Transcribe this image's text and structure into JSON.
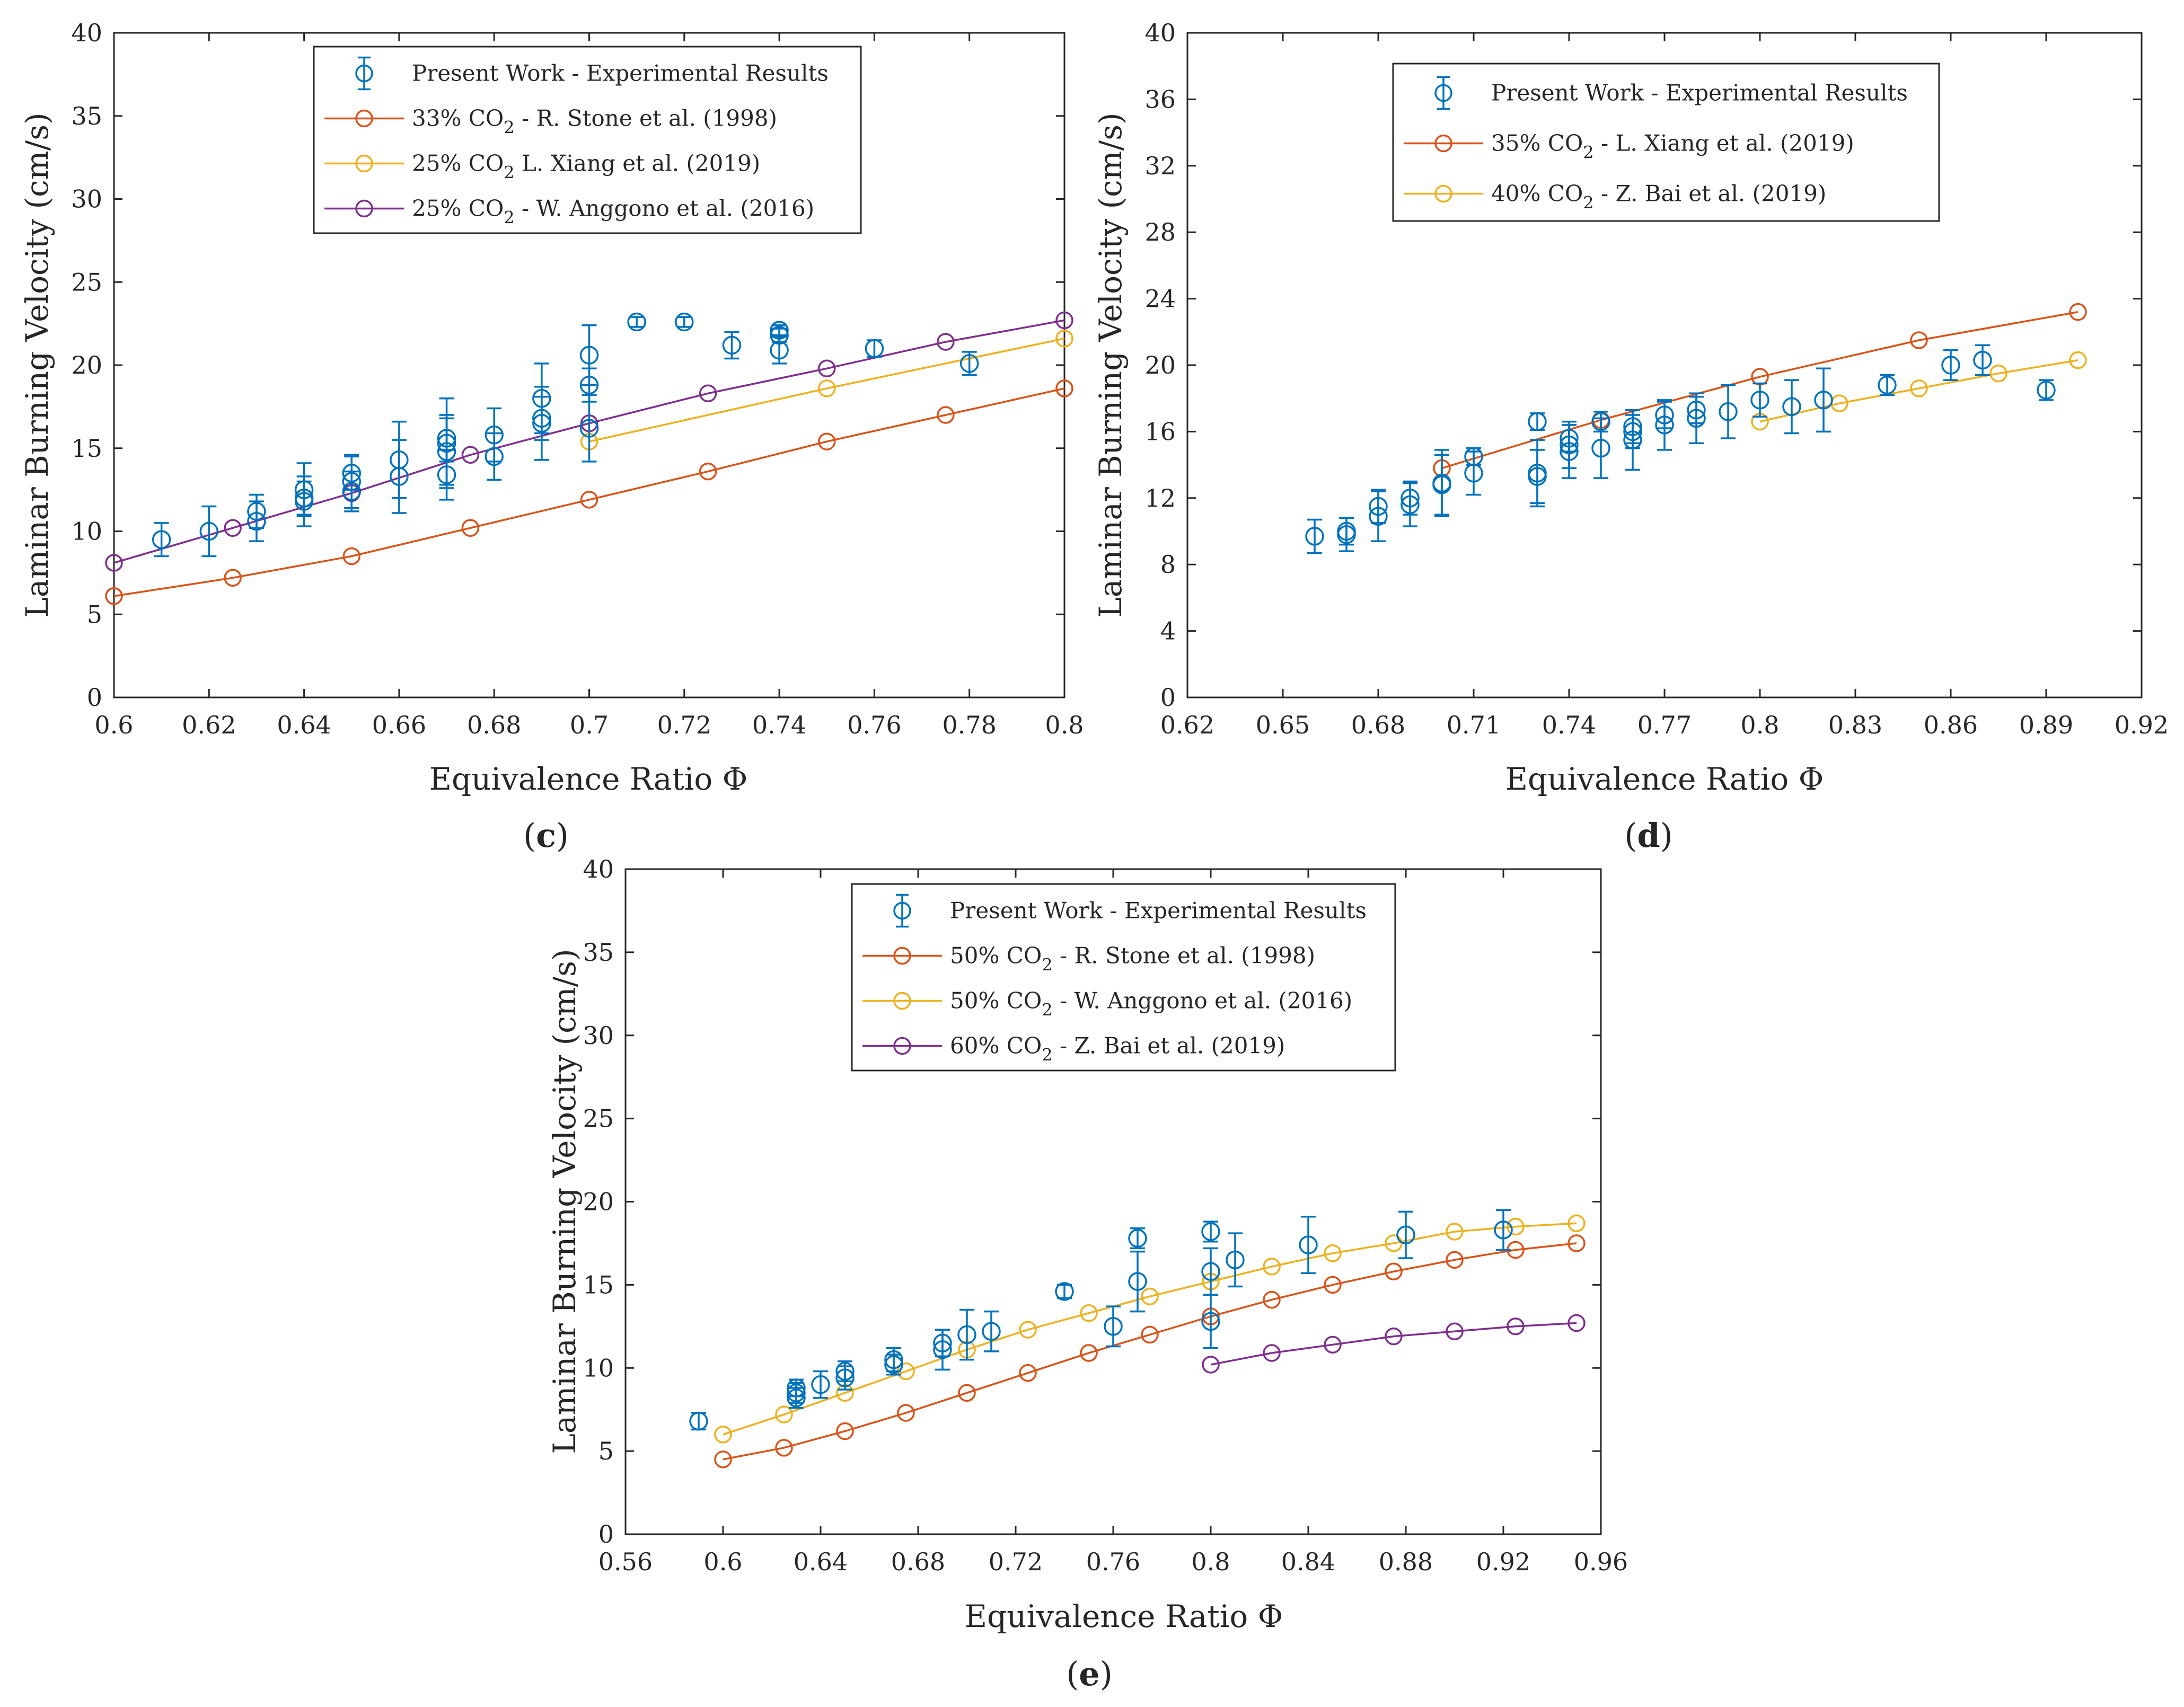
{
  "chart_data": [
    {
      "panel": "(c)",
      "panel_open": "(",
      "panel_letter": "c",
      "panel_close": ")",
      "type": "scatter",
      "xlabel": "Equivalence Ratio Φ",
      "ylabel": "Laminar Burning Velocity (cm/s)",
      "xlim": [
        0.6,
        0.8
      ],
      "ylim": [
        0,
        40
      ],
      "xticks": [
        0.6,
        0.62,
        0.64,
        0.66,
        0.68,
        0.7,
        0.72,
        0.74,
        0.76,
        0.78,
        0.8
      ],
      "xtick_labels": [
        "0.6",
        "0.62",
        "0.64",
        "0.66",
        "0.68",
        "0.7",
        "0.72",
        "0.74",
        "0.76",
        "0.78",
        "0.8"
      ],
      "yticks": [
        0,
        5,
        10,
        15,
        20,
        25,
        30,
        35,
        40
      ],
      "ytick_labels": [
        "0",
        "5",
        "10",
        "15",
        "20",
        "25",
        "30",
        "35",
        "40"
      ],
      "legend_position": "top-center",
      "experimental": {
        "name": "Present Work - Experimental Results",
        "color": "#0072BD",
        "points": [
          {
            "x": 0.61,
            "y": 9.5,
            "e": 1.0
          },
          {
            "x": 0.62,
            "y": 10.0,
            "e": 1.5
          },
          {
            "x": 0.63,
            "y": 10.6,
            "e": 1.2
          },
          {
            "x": 0.63,
            "y": 11.2,
            "e": 1.0
          },
          {
            "x": 0.64,
            "y": 11.8,
            "e": 1.5
          },
          {
            "x": 0.64,
            "y": 12.5,
            "e": 1.6
          },
          {
            "x": 0.64,
            "y": 12.0,
            "e": 1.0
          },
          {
            "x": 0.65,
            "y": 12.4,
            "e": 1.2
          },
          {
            "x": 0.65,
            "y": 13.0,
            "e": 1.6
          },
          {
            "x": 0.65,
            "y": 13.5,
            "e": 1.0
          },
          {
            "x": 0.66,
            "y": 14.3,
            "e": 2.3
          },
          {
            "x": 0.66,
            "y": 13.3,
            "e": 2.2
          },
          {
            "x": 0.67,
            "y": 13.4,
            "e": 1.5
          },
          {
            "x": 0.67,
            "y": 14.8,
            "e": 2.0
          },
          {
            "x": 0.67,
            "y": 15.3,
            "e": 2.7
          },
          {
            "x": 0.67,
            "y": 15.6,
            "e": 1.4
          },
          {
            "x": 0.68,
            "y": 14.5,
            "e": 1.4
          },
          {
            "x": 0.68,
            "y": 15.8,
            "e": 1.6
          },
          {
            "x": 0.69,
            "y": 16.5,
            "e": 2.2
          },
          {
            "x": 0.69,
            "y": 16.8,
            "e": 1.3
          },
          {
            "x": 0.69,
            "y": 18.0,
            "e": 2.1
          },
          {
            "x": 0.7,
            "y": 16.2,
            "e": 2.0
          },
          {
            "x": 0.7,
            "y": 18.8,
            "e": 1.0
          },
          {
            "x": 0.7,
            "y": 20.6,
            "e": 1.8
          },
          {
            "x": 0.71,
            "y": 22.6,
            "e": 0.3
          },
          {
            "x": 0.72,
            "y": 22.6,
            "e": 0.3
          },
          {
            "x": 0.73,
            "y": 21.2,
            "e": 0.8
          },
          {
            "x": 0.74,
            "y": 21.8,
            "e": 0.4
          },
          {
            "x": 0.74,
            "y": 22.1,
            "e": 0.3
          },
          {
            "x": 0.74,
            "y": 20.9,
            "e": 0.8
          },
          {
            "x": 0.76,
            "y": 21.0,
            "e": 0.5
          },
          {
            "x": 0.78,
            "y": 20.1,
            "e": 0.7
          }
        ]
      },
      "series": [
        {
          "name_pre": "33% CO",
          "name_sub": "2",
          "name_post": " - R. Stone et al. (1998)",
          "color": "#D95319",
          "x": [
            0.6,
            0.625,
            0.65,
            0.675,
            0.7,
            0.725,
            0.75,
            0.775,
            0.8
          ],
          "y": [
            6.1,
            7.2,
            8.5,
            10.2,
            11.9,
            13.6,
            15.4,
            17.0,
            18.6
          ]
        },
        {
          "name_pre": "25% CO",
          "name_sub": "2",
          "name_post": " L. Xiang et al. (2019)",
          "color": "#EDB120",
          "x": [
            0.7,
            0.75,
            0.8
          ],
          "y": [
            15.4,
            18.6,
            21.6
          ]
        },
        {
          "name_pre": "25% CO",
          "name_sub": "2",
          "name_post": " - W. Anggono et al. (2016)",
          "color": "#7E2F8E",
          "x": [
            0.6,
            0.625,
            0.65,
            0.675,
            0.7,
            0.725,
            0.75,
            0.775,
            0.8
          ],
          "y": [
            8.1,
            10.2,
            12.3,
            14.6,
            16.5,
            18.3,
            19.8,
            21.4,
            22.7
          ]
        }
      ]
    },
    {
      "panel": "(d)",
      "panel_open": "(",
      "panel_letter": "d",
      "panel_close": ")",
      "type": "scatter",
      "xlabel": "Equivalence Ratio Φ",
      "ylabel": "Laminar Burning Velocity (cm/s)",
      "xlim": [
        0.62,
        0.92
      ],
      "ylim": [
        0,
        40
      ],
      "xticks": [
        0.62,
        0.65,
        0.68,
        0.71,
        0.74,
        0.77,
        0.8,
        0.83,
        0.86,
        0.89,
        0.92
      ],
      "xtick_labels": [
        "0.62",
        "0.65",
        "0.68",
        "0.71",
        "0.74",
        "0.77",
        "0.8",
        "0.83",
        "0.86",
        "0.89",
        "0.92"
      ],
      "yticks": [
        0,
        4,
        8,
        12,
        16,
        20,
        24,
        28,
        32,
        36,
        40
      ],
      "ytick_labels": [
        "0",
        "4",
        "8",
        "12",
        "16",
        "20",
        "24",
        "28",
        "32",
        "36",
        "40"
      ],
      "legend_position": "top-left",
      "experimental": {
        "name": "Present Work - Experimental Results",
        "color": "#0072BD",
        "points": [
          {
            "x": 0.66,
            "y": 9.7,
            "e": 1.0
          },
          {
            "x": 0.67,
            "y": 9.8,
            "e": 1.0
          },
          {
            "x": 0.67,
            "y": 10.0,
            "e": 0.8
          },
          {
            "x": 0.68,
            "y": 10.9,
            "e": 1.5
          },
          {
            "x": 0.68,
            "y": 11.5,
            "e": 1.0
          },
          {
            "x": 0.69,
            "y": 11.6,
            "e": 1.3
          },
          {
            "x": 0.69,
            "y": 12.0,
            "e": 1.0
          },
          {
            "x": 0.7,
            "y": 12.8,
            "e": 1.8
          },
          {
            "x": 0.7,
            "y": 12.9,
            "e": 2.0
          },
          {
            "x": 0.71,
            "y": 13.5,
            "e": 1.3
          },
          {
            "x": 0.71,
            "y": 14.5,
            "e": 0.5
          },
          {
            "x": 0.73,
            "y": 13.3,
            "e": 1.6
          },
          {
            "x": 0.73,
            "y": 13.5,
            "e": 2.0
          },
          {
            "x": 0.73,
            "y": 16.6,
            "e": 0.5
          },
          {
            "x": 0.74,
            "y": 14.8,
            "e": 1.6
          },
          {
            "x": 0.74,
            "y": 15.2,
            "e": 1.4
          },
          {
            "x": 0.74,
            "y": 15.6,
            "e": 0.8
          },
          {
            "x": 0.75,
            "y": 15.0,
            "e": 1.8
          },
          {
            "x": 0.75,
            "y": 16.6,
            "e": 0.6
          },
          {
            "x": 0.76,
            "y": 15.5,
            "e": 1.8
          },
          {
            "x": 0.76,
            "y": 16.0,
            "e": 1.0
          },
          {
            "x": 0.76,
            "y": 16.3,
            "e": 1.0
          },
          {
            "x": 0.77,
            "y": 16.4,
            "e": 1.5
          },
          {
            "x": 0.77,
            "y": 17.0,
            "e": 0.8
          },
          {
            "x": 0.78,
            "y": 16.8,
            "e": 1.5
          },
          {
            "x": 0.78,
            "y": 17.3,
            "e": 0.8
          },
          {
            "x": 0.79,
            "y": 17.2,
            "e": 1.6
          },
          {
            "x": 0.8,
            "y": 17.9,
            "e": 1.0
          },
          {
            "x": 0.81,
            "y": 17.5,
            "e": 1.6
          },
          {
            "x": 0.82,
            "y": 17.9,
            "e": 1.9
          },
          {
            "x": 0.84,
            "y": 18.8,
            "e": 0.6
          },
          {
            "x": 0.86,
            "y": 20.0,
            "e": 0.9
          },
          {
            "x": 0.87,
            "y": 20.3,
            "e": 0.9
          },
          {
            "x": 0.89,
            "y": 18.5,
            "e": 0.6
          }
        ]
      },
      "series": [
        {
          "name_pre": "35% CO",
          "name_sub": "2",
          "name_post": " - L. Xiang et al. (2019)",
          "color": "#D95319",
          "x": [
            0.7,
            0.75,
            0.8,
            0.85,
            0.9
          ],
          "y": [
            13.8,
            16.7,
            19.3,
            21.5,
            23.2
          ]
        },
        {
          "name_pre": "40% CO",
          "name_sub": "2",
          "name_post": " - Z. Bai et al. (2019)",
          "color": "#EDB120",
          "x": [
            0.8,
            0.825,
            0.85,
            0.875,
            0.9
          ],
          "y": [
            16.6,
            17.7,
            18.6,
            19.5,
            20.3
          ]
        }
      ]
    },
    {
      "panel": "(e)",
      "panel_open": "(",
      "panel_letter": "e",
      "panel_close": ")",
      "type": "scatter",
      "xlabel": "Equivalence Ratio Φ",
      "ylabel": "Laminar Burning Velocity (cm/s)",
      "xlim": [
        0.56,
        0.96
      ],
      "ylim": [
        0,
        40
      ],
      "xticks": [
        0.56,
        0.6,
        0.64,
        0.68,
        0.72,
        0.76,
        0.8,
        0.84,
        0.88,
        0.92,
        0.96
      ],
      "xtick_labels": [
        "0.56",
        "0.6",
        "0.64",
        "0.68",
        "0.72",
        "0.76",
        "0.8",
        "0.84",
        "0.88",
        "0.92",
        "0.96"
      ],
      "yticks": [
        0,
        5,
        10,
        15,
        20,
        25,
        30,
        35,
        40
      ],
      "ytick_labels": [
        "0",
        "5",
        "10",
        "15",
        "20",
        "25",
        "30",
        "35",
        "40"
      ],
      "legend_position": "top-center",
      "experimental": {
        "name": "Present Work - Experimental Results",
        "color": "#0072BD",
        "points": [
          {
            "x": 0.59,
            "y": 6.8,
            "e": 0.5
          },
          {
            "x": 0.63,
            "y": 8.2,
            "e": 0.6
          },
          {
            "x": 0.63,
            "y": 8.5,
            "e": 0.6
          },
          {
            "x": 0.63,
            "y": 8.8,
            "e": 0.5
          },
          {
            "x": 0.64,
            "y": 9.0,
            "e": 0.8
          },
          {
            "x": 0.65,
            "y": 9.4,
            "e": 0.7
          },
          {
            "x": 0.65,
            "y": 9.8,
            "e": 0.6
          },
          {
            "x": 0.67,
            "y": 10.2,
            "e": 0.6
          },
          {
            "x": 0.67,
            "y": 10.5,
            "e": 0.7
          },
          {
            "x": 0.69,
            "y": 11.1,
            "e": 1.2
          },
          {
            "x": 0.69,
            "y": 11.5,
            "e": 0.8
          },
          {
            "x": 0.7,
            "y": 12.0,
            "e": 1.5
          },
          {
            "x": 0.71,
            "y": 12.2,
            "e": 1.2
          },
          {
            "x": 0.74,
            "y": 14.6,
            "e": 0.4
          },
          {
            "x": 0.76,
            "y": 12.5,
            "e": 1.2
          },
          {
            "x": 0.77,
            "y": 15.2,
            "e": 1.8
          },
          {
            "x": 0.77,
            "y": 17.8,
            "e": 0.6
          },
          {
            "x": 0.8,
            "y": 12.8,
            "e": 1.6
          },
          {
            "x": 0.8,
            "y": 15.8,
            "e": 1.4
          },
          {
            "x": 0.8,
            "y": 18.2,
            "e": 0.6
          },
          {
            "x": 0.81,
            "y": 16.5,
            "e": 1.6
          },
          {
            "x": 0.84,
            "y": 17.4,
            "e": 1.7
          },
          {
            "x": 0.88,
            "y": 18.0,
            "e": 1.4
          },
          {
            "x": 0.92,
            "y": 18.3,
            "e": 1.2
          }
        ]
      },
      "series": [
        {
          "name_pre": "50% CO",
          "name_sub": "2",
          "name_post": " - R. Stone et al. (1998)",
          "color": "#D95319",
          "x": [
            0.6,
            0.625,
            0.65,
            0.675,
            0.7,
            0.725,
            0.75,
            0.775,
            0.8,
            0.825,
            0.85,
            0.875,
            0.9,
            0.925,
            0.95
          ],
          "y": [
            4.5,
            5.2,
            6.2,
            7.3,
            8.5,
            9.7,
            10.9,
            12.0,
            13.1,
            14.1,
            15.0,
            15.8,
            16.5,
            17.1,
            17.5
          ]
        },
        {
          "name_pre": "50% CO",
          "name_sub": "2",
          "name_post": " - W. Anggono et al. (2016)",
          "color": "#EDB120",
          "x": [
            0.6,
            0.625,
            0.65,
            0.675,
            0.7,
            0.725,
            0.75,
            0.775,
            0.8,
            0.825,
            0.85,
            0.875,
            0.9,
            0.925,
            0.95
          ],
          "y": [
            6.0,
            7.2,
            8.5,
            9.8,
            11.1,
            12.3,
            13.3,
            14.3,
            15.2,
            16.1,
            16.9,
            17.5,
            18.2,
            18.5,
            18.7
          ]
        },
        {
          "name_pre": "60% CO",
          "name_sub": "2",
          "name_post": " - Z. Bai et al. (2019)",
          "color": "#7E2F8E",
          "x": [
            0.8,
            0.825,
            0.85,
            0.875,
            0.9,
            0.925,
            0.95
          ],
          "y": [
            10.2,
            10.9,
            11.4,
            11.9,
            12.2,
            12.5,
            12.7
          ]
        }
      ]
    }
  ]
}
